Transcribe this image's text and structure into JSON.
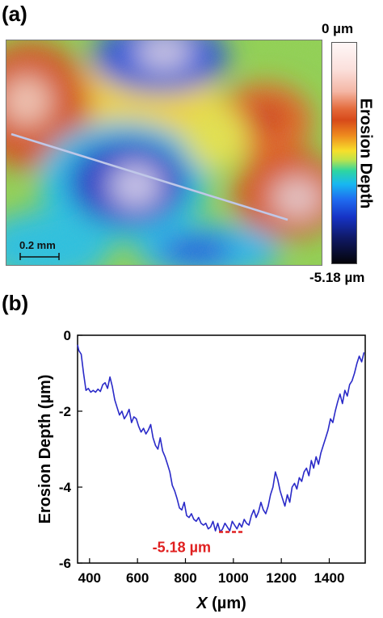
{
  "panel_a": {
    "label": "(a)",
    "colorbar_max": "0 µm",
    "colorbar_min": "-5.18 µm",
    "colorbar_title": "Erosion Depth",
    "scalebar_label": "0.2 mm"
  },
  "panel_b": {
    "label": "(b)",
    "annotation": "-5.18 µm"
  },
  "colors": {
    "line": "#2a2ac8",
    "annotation": "#e02020"
  },
  "chart_data": {
    "type": "line",
    "title": "",
    "xlabel": "X (µm)",
    "xlabel_italic": "X",
    "xlabel_unit": " (µm)",
    "ylabel": "Erosion Depth (µm)",
    "xlim": [
      350,
      1550
    ],
    "ylim": [
      -6,
      0
    ],
    "xticks": [
      400,
      600,
      800,
      1000,
      1200,
      1400
    ],
    "yticks": [
      0,
      -2,
      -4,
      -6
    ],
    "min_marker": {
      "x_start": 940,
      "x_end": 1040,
      "y": -5.18
    },
    "series": [
      {
        "x": [
          350,
          355,
          365,
          375,
          385,
          395,
          405,
          415,
          425,
          435,
          445,
          455,
          465,
          475,
          485,
          495,
          505,
          515,
          525,
          535,
          545,
          555,
          565,
          575,
          585,
          595,
          605,
          615,
          625,
          635,
          645,
          655,
          665,
          675,
          685,
          695,
          705,
          715,
          725,
          735,
          745,
          755,
          765,
          775,
          785,
          795,
          805,
          815,
          825,
          835,
          845,
          855,
          865,
          875,
          885,
          895,
          905,
          915,
          925,
          935,
          945,
          955,
          965,
          975,
          985,
          995,
          1005,
          1015,
          1025,
          1035,
          1045,
          1055,
          1065,
          1075,
          1085,
          1095,
          1105,
          1115,
          1125,
          1135,
          1145,
          1155,
          1165,
          1175,
          1185,
          1195,
          1205,
          1215,
          1225,
          1235,
          1245,
          1255,
          1265,
          1275,
          1285,
          1295,
          1305,
          1315,
          1325,
          1335,
          1345,
          1355,
          1365,
          1375,
          1385,
          1395,
          1405,
          1415,
          1425,
          1435,
          1445,
          1455,
          1465,
          1475,
          1485,
          1495,
          1505,
          1515,
          1525,
          1535,
          1545
        ],
        "values": [
          -0.25,
          -0.4,
          -0.5,
          -1.0,
          -1.45,
          -1.4,
          -1.5,
          -1.45,
          -1.5,
          -1.42,
          -1.48,
          -1.3,
          -1.25,
          -1.4,
          -1.1,
          -1.35,
          -1.7,
          -1.9,
          -2.1,
          -2.0,
          -2.2,
          -2.1,
          -1.95,
          -2.3,
          -2.15,
          -2.2,
          -2.4,
          -2.55,
          -2.45,
          -2.6,
          -2.5,
          -2.35,
          -2.7,
          -2.9,
          -3.0,
          -2.7,
          -3.05,
          -3.2,
          -3.4,
          -3.6,
          -3.95,
          -4.1,
          -4.3,
          -4.55,
          -4.6,
          -4.4,
          -4.75,
          -4.8,
          -4.7,
          -4.85,
          -4.9,
          -4.8,
          -4.95,
          -5.0,
          -4.95,
          -5.1,
          -5.05,
          -4.9,
          -5.15,
          -4.95,
          -5.18,
          -5.1,
          -4.95,
          -5.05,
          -5.15,
          -4.9,
          -5.0,
          -5.1,
          -4.95,
          -5.05,
          -4.85,
          -4.95,
          -5.0,
          -4.75,
          -4.6,
          -4.8,
          -4.65,
          -4.4,
          -4.6,
          -4.7,
          -4.5,
          -4.2,
          -4.0,
          -3.6,
          -3.8,
          -4.1,
          -4.3,
          -4.5,
          -4.2,
          -4.4,
          -4.0,
          -3.9,
          -4.05,
          -3.75,
          -3.85,
          -3.6,
          -3.5,
          -3.7,
          -3.3,
          -3.5,
          -3.2,
          -3.4,
          -3.1,
          -2.9,
          -2.7,
          -2.5,
          -2.2,
          -2.3,
          -2.0,
          -1.75,
          -1.55,
          -1.8,
          -1.45,
          -1.6,
          -1.3,
          -1.2,
          -1.0,
          -0.75,
          -0.55,
          -0.7,
          -0.45
        ]
      }
    ]
  }
}
